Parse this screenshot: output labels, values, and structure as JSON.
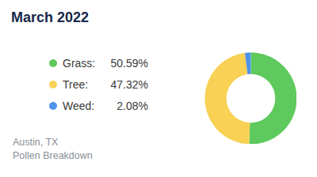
{
  "chart_data": {
    "type": "donut",
    "title": "March 2022",
    "categories": [
      "Grass:",
      "Tree:",
      "Weed:"
    ],
    "values": [
      50.59,
      47.32,
      2.08
    ],
    "value_labels": [
      "50.59%",
      "47.32%",
      "2.08%"
    ],
    "colors": [
      "#5ec95c",
      "#f8d155",
      "#4f93e8"
    ],
    "legend": "left",
    "caption": [
      "Austin, TX",
      "Pollen Breakdown"
    ]
  }
}
